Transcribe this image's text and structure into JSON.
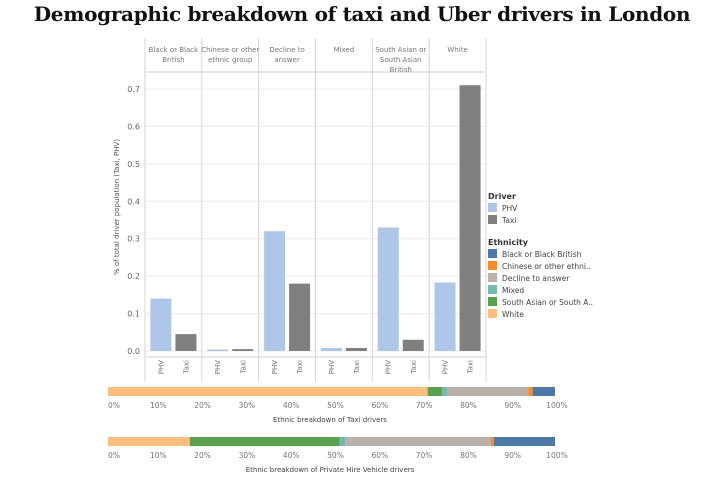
{
  "title": "Demographic breakdown of taxi and Uber drivers in London",
  "colors": {
    "phv": "#aec7e8",
    "taxi": "#7f7f7f",
    "black_or_black_british": "#4e79a7",
    "chinese_or_other": "#f28e2b",
    "decline": "#bab0ac",
    "mixed": "#76b7b2",
    "south_asian": "#59a14f",
    "white": "#ffbe7d"
  },
  "legend": {
    "driver_title": "Driver",
    "driver_items": [
      "PHV",
      "Taxi"
    ],
    "ethnicity_title": "Ethnicity",
    "ethnicity_items": [
      "Black or Black British",
      "Chinese or other ethni..",
      "Decline to answer",
      "Mixed",
      "South Asian or South A..",
      "White"
    ]
  },
  "chart_data": [
    {
      "type": "bar",
      "ylabel": "% of total driver population (Taxi, PHV)",
      "ylim": [
        0,
        0.72
      ],
      "yticks": [
        "0.0",
        "0.1",
        "0.2",
        "0.3",
        "0.4",
        "0.5",
        "0.6",
        "0.7"
      ],
      "ytick_values": [
        0,
        0.1,
        0.2,
        0.3,
        0.4,
        0.5,
        0.6,
        0.7
      ],
      "panels": [
        {
          "label": "Black or Black British",
          "lines": [
            "Black or Black",
            "British"
          ],
          "PHV": 0.14,
          "Taxi": 0.045
        },
        {
          "label": "Chinese or other ethnic group",
          "lines": [
            "Chinese or other",
            "ethnic group"
          ],
          "PHV": 0.003,
          "Taxi": 0.005
        },
        {
          "label": "Decline to answer",
          "lines": [
            "Decline to",
            "answer"
          ],
          "PHV": 0.32,
          "Taxi": 0.18
        },
        {
          "label": "Mixed",
          "lines": [
            "Mixed"
          ],
          "PHV": 0.008,
          "Taxi": 0.008
        },
        {
          "label": "South Asian or South Asian British",
          "lines": [
            "South Asian or",
            "South Asian",
            "British"
          ],
          "PHV": 0.33,
          "Taxi": 0.03
        },
        {
          "label": "White",
          "lines": [
            "White"
          ],
          "PHV": 0.183,
          "Taxi": 0.71
        }
      ],
      "bar_labels": [
        "PHV",
        "Taxi"
      ],
      "grid": true,
      "legend_placement": "right"
    },
    {
      "type": "bar",
      "orientation": "horizontal-stacked",
      "xlabel": "Ethnic breakdown of Taxi drivers",
      "xticks": [
        "0%",
        "10%",
        "20%",
        "30%",
        "40%",
        "50%",
        "60%",
        "70%",
        "80%",
        "90%",
        "100%"
      ],
      "segments": [
        {
          "name": "White",
          "value": 0.715
        },
        {
          "name": "South Asian or South Asian British",
          "value": 0.032
        },
        {
          "name": "Mixed",
          "value": 0.013
        },
        {
          "name": "Decline to answer",
          "value": 0.18
        },
        {
          "name": "Chinese or other ethnic group",
          "value": 0.01
        },
        {
          "name": "Black or Black British",
          "value": 0.05
        }
      ]
    },
    {
      "type": "bar",
      "orientation": "horizontal-stacked",
      "xlabel": "Ethnic breakdown of Private Hire Vehicle drivers",
      "xticks": [
        "0%",
        "10%",
        "20%",
        "30%",
        "40%",
        "50%",
        "60%",
        "70%",
        "80%",
        "90%",
        "100%"
      ],
      "segments": [
        {
          "name": "White",
          "value": 0.183
        },
        {
          "name": "South Asian or South Asian British",
          "value": 0.335
        },
        {
          "name": "Mixed",
          "value": 0.013
        },
        {
          "name": "Decline to answer",
          "value": 0.325
        },
        {
          "name": "Chinese or other ethnic group",
          "value": 0.007
        },
        {
          "name": "Black or Black British",
          "value": 0.137
        }
      ]
    }
  ]
}
